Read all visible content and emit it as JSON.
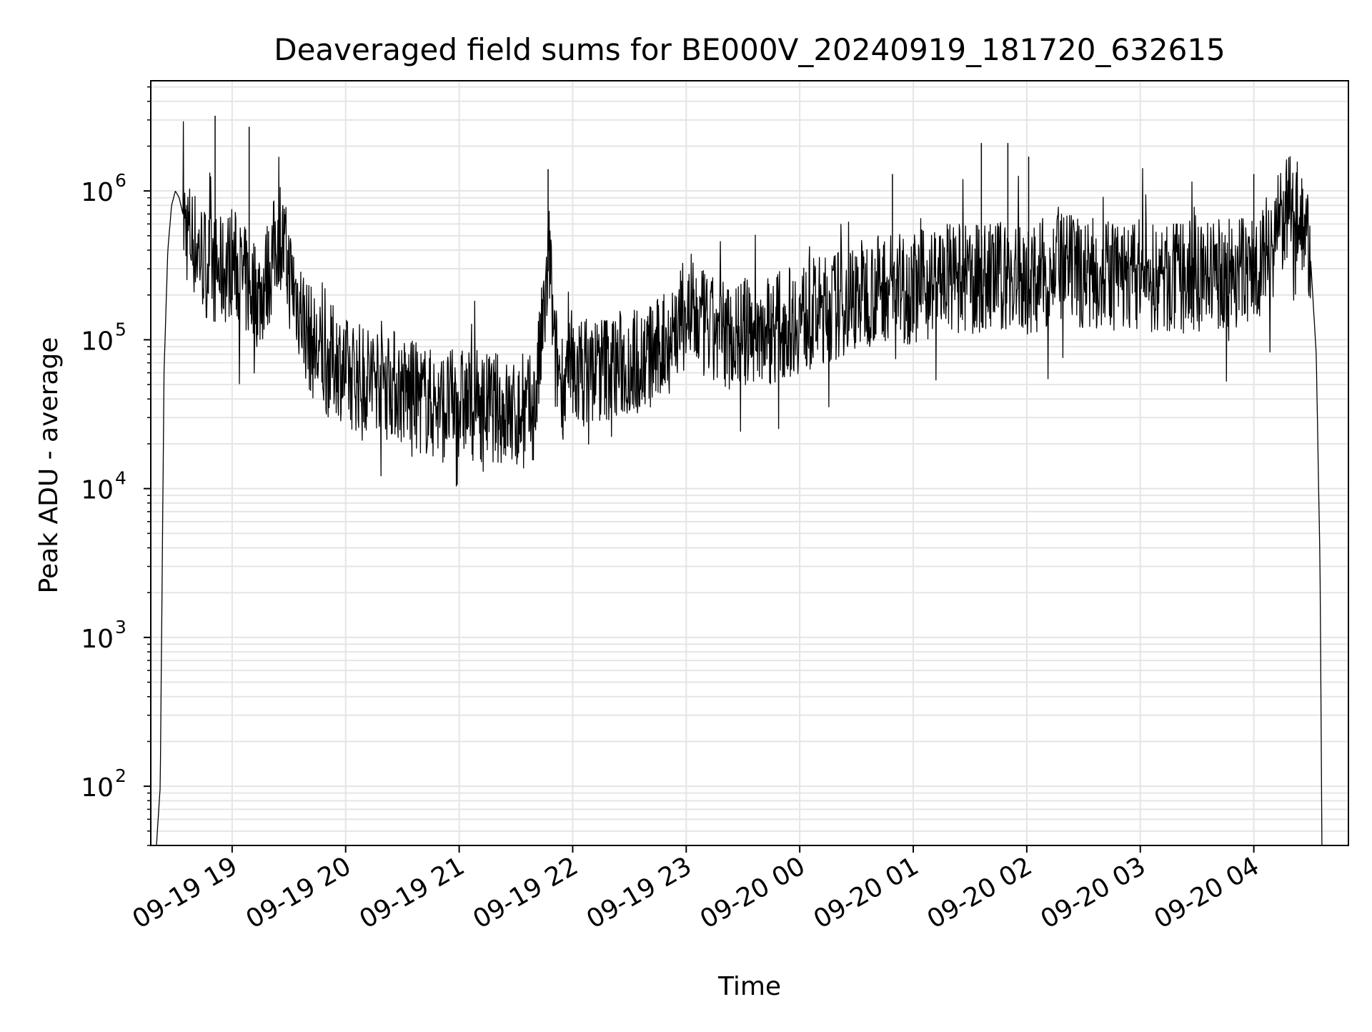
{
  "chart_data": {
    "type": "line",
    "title": "Deaveraged field sums for BE000V_20240919_181720_632615",
    "xlabel": "Time",
    "ylabel": "Peak ADU - average",
    "yscale": "log",
    "ylim": [
      40,
      5500000
    ],
    "xlim": [
      "2024-09-19 18:17",
      "2024-09-20 04:50"
    ],
    "grid": true,
    "line_color": "#000000",
    "grid_color": "#e5e5e5",
    "x_ticks": [
      {
        "value": "2024-09-19 19:00",
        "label": "09-19 19"
      },
      {
        "value": "2024-09-19 20:00",
        "label": "09-19 20"
      },
      {
        "value": "2024-09-19 21:00",
        "label": "09-19 21"
      },
      {
        "value": "2024-09-19 22:00",
        "label": "09-19 22"
      },
      {
        "value": "2024-09-19 23:00",
        "label": "09-19 23"
      },
      {
        "value": "2024-09-20 00:00",
        "label": "09-20 00"
      },
      {
        "value": "2024-09-20 01:00",
        "label": "09-20 01"
      },
      {
        "value": "2024-09-20 02:00",
        "label": "09-20 02"
      },
      {
        "value": "2024-09-20 03:00",
        "label": "09-20 03"
      },
      {
        "value": "2024-09-20 04:00",
        "label": "09-20 04"
      }
    ],
    "y_ticks": [
      {
        "value": 100,
        "base": "10",
        "exp": "2"
      },
      {
        "value": 1000,
        "base": "10",
        "exp": "3"
      },
      {
        "value": 10000,
        "base": "10",
        "exp": "4"
      },
      {
        "value": 100000,
        "base": "10",
        "exp": "5"
      },
      {
        "value": 1000000,
        "base": "10",
        "exp": "6"
      }
    ],
    "series": [
      {
        "x": [
          "2024-09-19 18:20",
          "2024-09-19 18:22",
          "2024-09-19 18:24",
          "2024-09-19 18:26",
          "2024-09-19 18:28",
          "2024-09-19 18:30",
          "2024-09-19 18:32",
          "2024-09-19 18:34",
          "2024-09-19 18:36",
          "2024-09-19 18:40",
          "2024-09-19 18:45",
          "2024-09-19 18:50",
          "2024-09-19 18:55",
          "2024-09-19 19:00",
          "2024-09-19 19:05",
          "2024-09-19 19:10",
          "2024-09-19 19:15",
          "2024-09-19 19:20",
          "2024-09-19 19:25",
          "2024-09-19 19:30",
          "2024-09-19 19:35",
          "2024-09-19 19:40",
          "2024-09-19 19:45",
          "2024-09-19 19:50",
          "2024-09-19 19:55",
          "2024-09-19 20:00",
          "2024-09-19 20:10",
          "2024-09-19 20:20",
          "2024-09-19 20:30",
          "2024-09-19 20:40",
          "2024-09-19 20:50",
          "2024-09-19 21:00",
          "2024-09-19 21:10",
          "2024-09-19 21:20",
          "2024-09-19 21:30",
          "2024-09-19 21:40",
          "2024-09-19 21:45",
          "2024-09-19 21:48",
          "2024-09-19 21:50",
          "2024-09-19 21:55",
          "2024-09-19 22:00",
          "2024-09-19 22:15",
          "2024-09-19 22:30",
          "2024-09-19 22:45",
          "2024-09-19 23:00",
          "2024-09-19 23:15",
          "2024-09-19 23:30",
          "2024-09-19 23:45",
          "2024-09-20 00:00",
          "2024-09-20 00:15",
          "2024-09-20 00:30",
          "2024-09-20 00:45",
          "2024-09-20 01:00",
          "2024-09-20 01:15",
          "2024-09-20 01:30",
          "2024-09-20 01:45",
          "2024-09-20 02:00",
          "2024-09-20 02:15",
          "2024-09-20 02:30",
          "2024-09-20 02:45",
          "2024-09-20 03:00",
          "2024-09-20 03:15",
          "2024-09-20 03:30",
          "2024-09-20 03:45",
          "2024-09-20 04:00",
          "2024-09-20 04:10",
          "2024-09-20 04:15",
          "2024-09-20 04:20",
          "2024-09-20 04:25",
          "2024-09-20 04:30",
          "2024-09-20 04:33",
          "2024-09-20 04:35",
          "2024-09-20 04:36"
        ],
        "y": [
          40,
          100,
          60000,
          400000,
          800000,
          1000000,
          900000,
          700000,
          550000,
          450000,
          350000,
          300000,
          280000,
          350000,
          260000,
          220000,
          200000,
          300000,
          550000,
          280000,
          180000,
          110000,
          80000,
          70000,
          75000,
          60000,
          55000,
          60000,
          45000,
          40000,
          35000,
          38000,
          36000,
          35000,
          30000,
          35000,
          150000,
          400000,
          80000,
          50000,
          60000,
          65000,
          70000,
          80000,
          150000,
          110000,
          110000,
          120000,
          140000,
          160000,
          200000,
          230000,
          220000,
          260000,
          250000,
          270000,
          250000,
          300000,
          280000,
          270000,
          260000,
          250000,
          270000,
          280000,
          300000,
          450000,
          650000,
          750000,
          700000,
          350000,
          80000,
          3000,
          40
        ]
      }
    ],
    "spikes": [
      {
        "x": "2024-09-19 18:51",
        "y": 3200000
      },
      {
        "x": "2024-09-19 19:09",
        "y": 2700000
      },
      {
        "x": "2024-09-19 21:47",
        "y": 1400000
      },
      {
        "x": "2024-09-20 00:49",
        "y": 1300000
      },
      {
        "x": "2024-09-20 01:36",
        "y": 2100000
      },
      {
        "x": "2024-09-20 01:50",
        "y": 2100000
      },
      {
        "x": "2024-09-20 02:01",
        "y": 1700000
      },
      {
        "x": "2024-09-20 04:00",
        "y": 1300000
      }
    ]
  }
}
